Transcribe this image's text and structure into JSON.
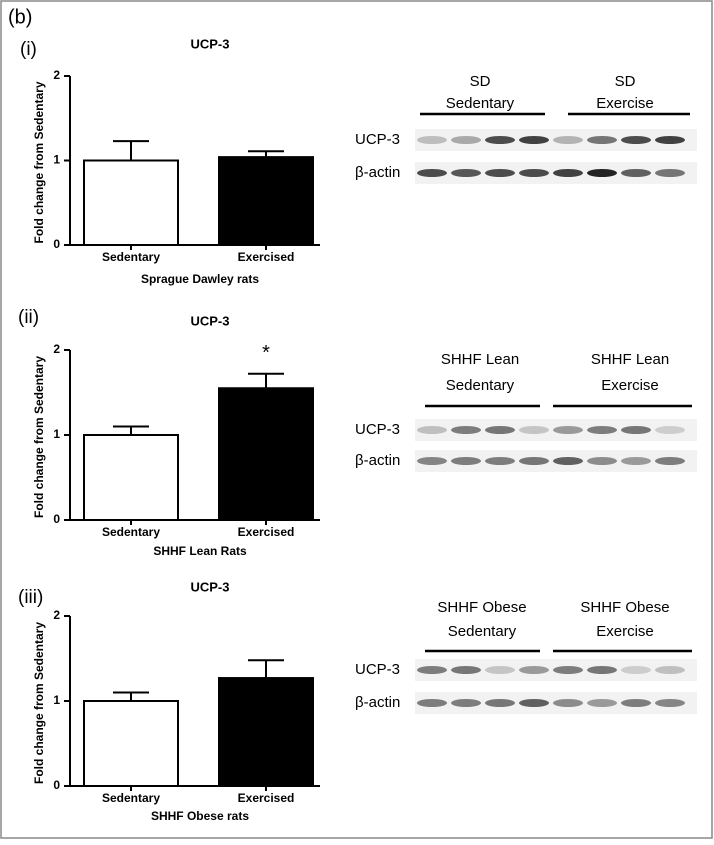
{
  "figure_label": "(b)",
  "chart_data": [
    {
      "type": "bar",
      "panel": "(i)",
      "title": "UCP-3",
      "y_label": "Fold change from Sedentary",
      "x_label": "Sprague Dawley rats",
      "categories": [
        "Sedentary",
        "Exercised"
      ],
      "values": [
        1.0,
        1.04
      ],
      "errors": [
        0.23,
        0.07
      ],
      "colors": [
        "#ffffff",
        "#000000"
      ],
      "ylim": [
        0,
        2
      ],
      "yticks": [
        0,
        1,
        2
      ]
    },
    {
      "type": "bar",
      "panel": "(ii)",
      "title": "UCP-3",
      "y_label": "Fold change from Sedentary",
      "x_label": "SHHF Lean Rats",
      "categories": [
        "Sedentary",
        "Exercised"
      ],
      "values": [
        1.0,
        1.55
      ],
      "errors": [
        0.1,
        0.17
      ],
      "colors": [
        "#ffffff",
        "#000000"
      ],
      "annotation": "*",
      "ylim": [
        0,
        2
      ],
      "yticks": [
        0,
        1,
        2
      ]
    },
    {
      "type": "bar",
      "panel": "(iii)",
      "title": "UCP-3",
      "y_label": "Fold change from Sedentary",
      "x_label": "SHHF Obese rats",
      "categories": [
        "Sedentary",
        "Exercised"
      ],
      "values": [
        1.0,
        1.27
      ],
      "errors": [
        0.1,
        0.21
      ],
      "colors": [
        "#ffffff",
        "#000000"
      ],
      "ylim": [
        0,
        2
      ],
      "yticks": [
        0,
        1,
        2
      ]
    }
  ],
  "blots": [
    {
      "groups": [
        [
          "SD",
          "Sedentary"
        ],
        [
          "SD",
          "Exercise"
        ]
      ],
      "rows": [
        "UCP-3",
        "β-actin"
      ]
    },
    {
      "groups": [
        [
          "SHHF Lean",
          "Sedentary"
        ],
        [
          "SHHF Lean",
          "Exercise"
        ]
      ],
      "rows": [
        "UCP-3",
        "β-actin"
      ]
    },
    {
      "groups": [
        [
          "SHHF Obese",
          "Sedentary"
        ],
        [
          "SHHF Obese",
          "Exercise"
        ]
      ],
      "rows": [
        "UCP-3",
        "β-actin"
      ]
    }
  ]
}
